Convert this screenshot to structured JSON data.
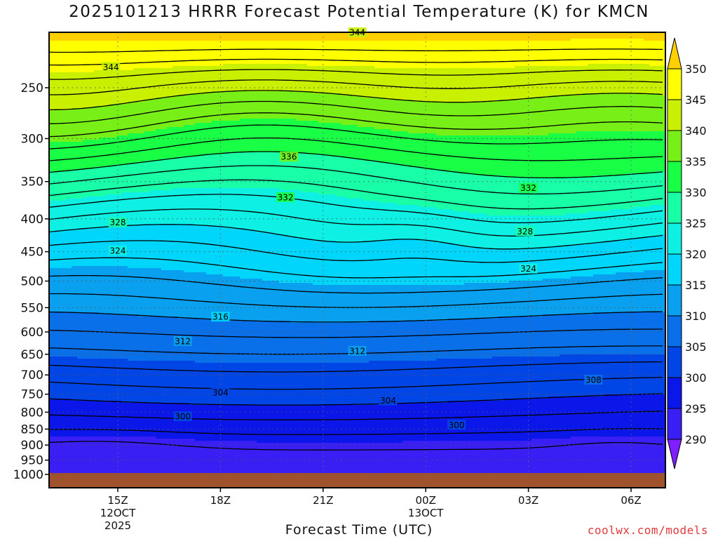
{
  "chart_data": {
    "type": "contour",
    "title": "2025101213 HRRR Forecast Potential Temperature (K) for KMCN",
    "xlabel": "Forecast Time (UTC)",
    "ylabel": "",
    "credit": "coolwx.com/models",
    "x_ticks": [
      {
        "lines": [
          "15Z",
          "12OCT",
          "2025"
        ],
        "hour": 15
      },
      {
        "lines": [
          "18Z"
        ],
        "hour": 18
      },
      {
        "lines": [
          "21Z"
        ],
        "hour": 21
      },
      {
        "lines": [
          "00Z",
          "13OCT"
        ],
        "hour": 24
      },
      {
        "lines": [
          "03Z"
        ],
        "hour": 27
      },
      {
        "lines": [
          "06Z"
        ],
        "hour": 30
      }
    ],
    "y_scale": "log",
    "y_ticks": [
      250,
      300,
      350,
      400,
      450,
      500,
      550,
      600,
      650,
      700,
      750,
      800,
      850,
      900,
      950,
      1000
    ],
    "colorbar": {
      "min": 290,
      "max": 350,
      "step": 5,
      "labels": [
        "290",
        "295",
        "300",
        "305",
        "310",
        "315",
        "320",
        "325",
        "330",
        "335",
        "340",
        "345",
        "350"
      ],
      "colors": [
        "#7f1fff",
        "#3a1ff5",
        "#0a17e8",
        "#0046e6",
        "#0a70ea",
        "#0aa0f0",
        "#00d6fb",
        "#0ff0e4",
        "#18ffa8",
        "#18ff45",
        "#78f018",
        "#c8f000",
        "#ffff00",
        "#ffd000"
      ]
    },
    "contour_labels": [
      {
        "value": "344",
        "hour": 14.8,
        "p": 232
      },
      {
        "value": "344",
        "hour": 22.0,
        "p": 205
      },
      {
        "value": "336",
        "hour": 20.0,
        "p": 320
      },
      {
        "value": "332",
        "hour": 19.9,
        "p": 370
      },
      {
        "value": "332",
        "hour": 27.0,
        "p": 358
      },
      {
        "value": "328",
        "hour": 15.0,
        "p": 405
      },
      {
        "value": "328",
        "hour": 26.9,
        "p": 418
      },
      {
        "value": "324",
        "hour": 15.0,
        "p": 448
      },
      {
        "value": "324",
        "hour": 27.0,
        "p": 478
      },
      {
        "value": "316",
        "hour": 18.0,
        "p": 568
      },
      {
        "value": "312",
        "hour": 16.9,
        "p": 620
      },
      {
        "value": "312",
        "hour": 22.0,
        "p": 642
      },
      {
        "value": "308",
        "hour": 28.9,
        "p": 712
      },
      {
        "value": "304",
        "hour": 18.0,
        "p": 745
      },
      {
        "value": "304",
        "hour": 22.9,
        "p": 767
      },
      {
        "value": "300",
        "hour": 16.9,
        "p": 812
      },
      {
        "value": "300",
        "hour": 24.9,
        "p": 837
      }
    ]
  }
}
